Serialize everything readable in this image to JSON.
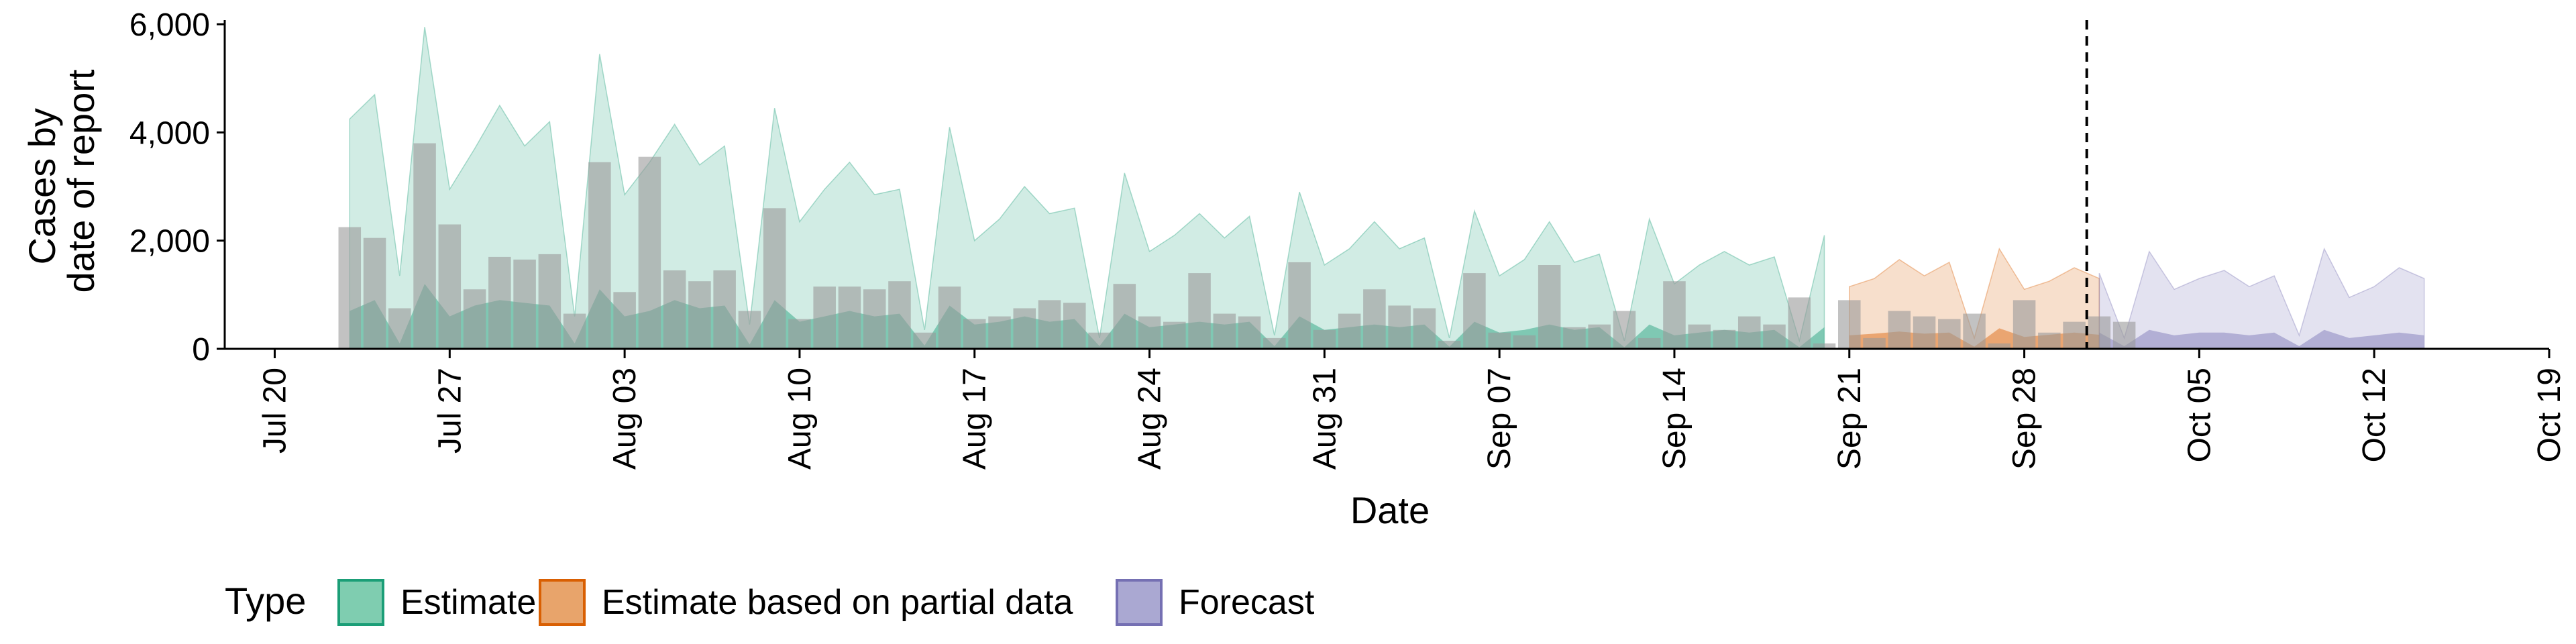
{
  "chart_data": {
    "type": "bar",
    "title": "",
    "xlabel": "Date",
    "ylabel_lines": [
      "Cases by",
      "date of report"
    ],
    "ylim": [
      0,
      6200
    ],
    "y_ticks": [
      0,
      2000,
      4000,
      6000
    ],
    "y_tick_labels": [
      "0",
      "2,000",
      "4,000",
      "6,000"
    ],
    "x_ticks": [
      "2020-07-20",
      "2020-07-27",
      "2020-08-03",
      "2020-08-10",
      "2020-08-17",
      "2020-08-24",
      "2020-08-31",
      "2020-09-07",
      "2020-09-14",
      "2020-09-21",
      "2020-09-28",
      "2020-10-05",
      "2020-10-12",
      "2020-10-19"
    ],
    "x_tick_labels": [
      "Jul 20",
      "Jul 27",
      "Aug 03",
      "Aug 10",
      "Aug 17",
      "Aug 24",
      "Aug 31",
      "Sep 07",
      "Sep 14",
      "Sep 21",
      "Sep 28",
      "Oct 05",
      "Oct 12",
      "Oct 19"
    ],
    "xlim": [
      "2020-07-18",
      "2020-10-19"
    ],
    "vline_date": "2020-09-30",
    "grid": false,
    "legend": {
      "position": "bottom",
      "title": "Type",
      "items": [
        {
          "label": "Estimate",
          "fill": "#7fcdb0",
          "stroke": "#1b9e77"
        },
        {
          "label": "Estimate based on partial data",
          "fill": "#e8a46b",
          "stroke": "#d95f02"
        },
        {
          "label": "Forecast",
          "fill": "#aaa8d2",
          "stroke": "#7570b3"
        }
      ]
    },
    "colors": {
      "estimate": "#1b9e77",
      "partial": "#d95f02",
      "forecast": "#7570b3",
      "bars": "#999999"
    },
    "bars": {
      "start_date": "2020-07-23",
      "values": [
        2250,
        2050,
        750,
        3800,
        2300,
        1100,
        1700,
        1650,
        1750,
        650,
        3450,
        1050,
        3550,
        1450,
        1250,
        1450,
        700,
        2600,
        550,
        1150,
        1150,
        1100,
        1250,
        300,
        1150,
        550,
        600,
        750,
        900,
        850,
        300,
        1200,
        600,
        500,
        1400,
        650,
        600,
        200,
        1600,
        350,
        650,
        1100,
        800,
        750,
        150,
        1400,
        300,
        250,
        1550,
        400,
        450,
        700,
        200,
        1250,
        450,
        350,
        600,
        450,
        950,
        100,
        900,
        200,
        700,
        600,
        550,
        650,
        100,
        900,
        300,
        500,
        600,
        500
      ]
    },
    "series": [
      {
        "name": "Estimate",
        "type": "Estimate",
        "start_date": "2020-07-23",
        "upper": [
          4250,
          4700,
          1350,
          5950,
          2950,
          3700,
          4500,
          3750,
          4200,
          600,
          5450,
          2850,
          3450,
          4150,
          3400,
          3750,
          450,
          4450,
          2350,
          2950,
          3450,
          2850,
          2950,
          350,
          4100,
          2000,
          2400,
          3000,
          2500,
          2600,
          200,
          3250,
          1800,
          2100,
          2500,
          2050,
          2450,
          250,
          2900,
          1550,
          1850,
          2350,
          1850,
          2050,
          200,
          2550,
          1350,
          1650,
          2350,
          1600,
          1750,
          150,
          2400,
          1200,
          1550,
          1800,
          1550,
          1700,
          150,
          2100
        ],
        "lower": [
          700,
          900,
          100,
          1200,
          600,
          800,
          900,
          850,
          800,
          100,
          1100,
          600,
          700,
          900,
          750,
          800,
          80,
          900,
          500,
          600,
          700,
          600,
          650,
          60,
          800,
          450,
          500,
          600,
          500,
          550,
          50,
          650,
          400,
          450,
          500,
          450,
          500,
          50,
          600,
          350,
          400,
          450,
          400,
          450,
          40,
          500,
          300,
          350,
          450,
          350,
          400,
          30,
          450,
          250,
          300,
          350,
          300,
          350,
          30,
          400
        ]
      },
      {
        "name": "Estimate based on partial data",
        "type": "Estimate based on partial data",
        "start_date": "2020-09-21",
        "upper": [
          1150,
          1300,
          1650,
          1350,
          1600,
          200,
          1850,
          1100,
          1250,
          1500,
          1300
        ],
        "lower": [
          250,
          280,
          320,
          280,
          300,
          40,
          380,
          220,
          260,
          300,
          260
        ]
      },
      {
        "name": "Forecast",
        "type": "Forecast",
        "start_date": "2020-10-01",
        "upper": [
          1400,
          200,
          1800,
          1100,
          1300,
          1450,
          1150,
          1350,
          250,
          1850,
          950,
          1150,
          1500,
          1300
        ],
        "lower": [
          300,
          50,
          350,
          250,
          300,
          300,
          250,
          300,
          50,
          350,
          200,
          250,
          300,
          250
        ]
      }
    ]
  }
}
